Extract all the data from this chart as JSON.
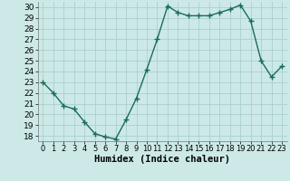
{
  "x": [
    0,
    1,
    2,
    3,
    4,
    5,
    6,
    7,
    8,
    9,
    10,
    11,
    12,
    13,
    14,
    15,
    16,
    17,
    18,
    19,
    20,
    21,
    22,
    23
  ],
  "y": [
    23.0,
    22.0,
    20.8,
    20.5,
    19.3,
    18.2,
    17.9,
    17.7,
    19.5,
    21.5,
    24.2,
    27.0,
    30.1,
    29.5,
    29.2,
    29.2,
    29.2,
    29.5,
    29.8,
    30.2,
    28.7,
    25.0,
    23.5,
    24.5
  ],
  "line_color": "#1a6b5a",
  "marker": "+",
  "marker_size": 4,
  "marker_linewidth": 1.0,
  "bg_color": "#cce9e8",
  "grid_color": "#aacfce",
  "xlabel": "Humidex (Indice chaleur)",
  "xlim": [
    -0.5,
    23.5
  ],
  "ylim": [
    17.5,
    30.5
  ],
  "yticks": [
    18,
    19,
    20,
    21,
    22,
    23,
    24,
    25,
    26,
    27,
    28,
    29,
    30
  ],
  "xticks": [
    0,
    1,
    2,
    3,
    4,
    5,
    6,
    7,
    8,
    9,
    10,
    11,
    12,
    13,
    14,
    15,
    16,
    17,
    18,
    19,
    20,
    21,
    22,
    23
  ],
  "label_fontsize": 7.5,
  "tick_fontsize": 6.5,
  "linewidth": 1.0
}
